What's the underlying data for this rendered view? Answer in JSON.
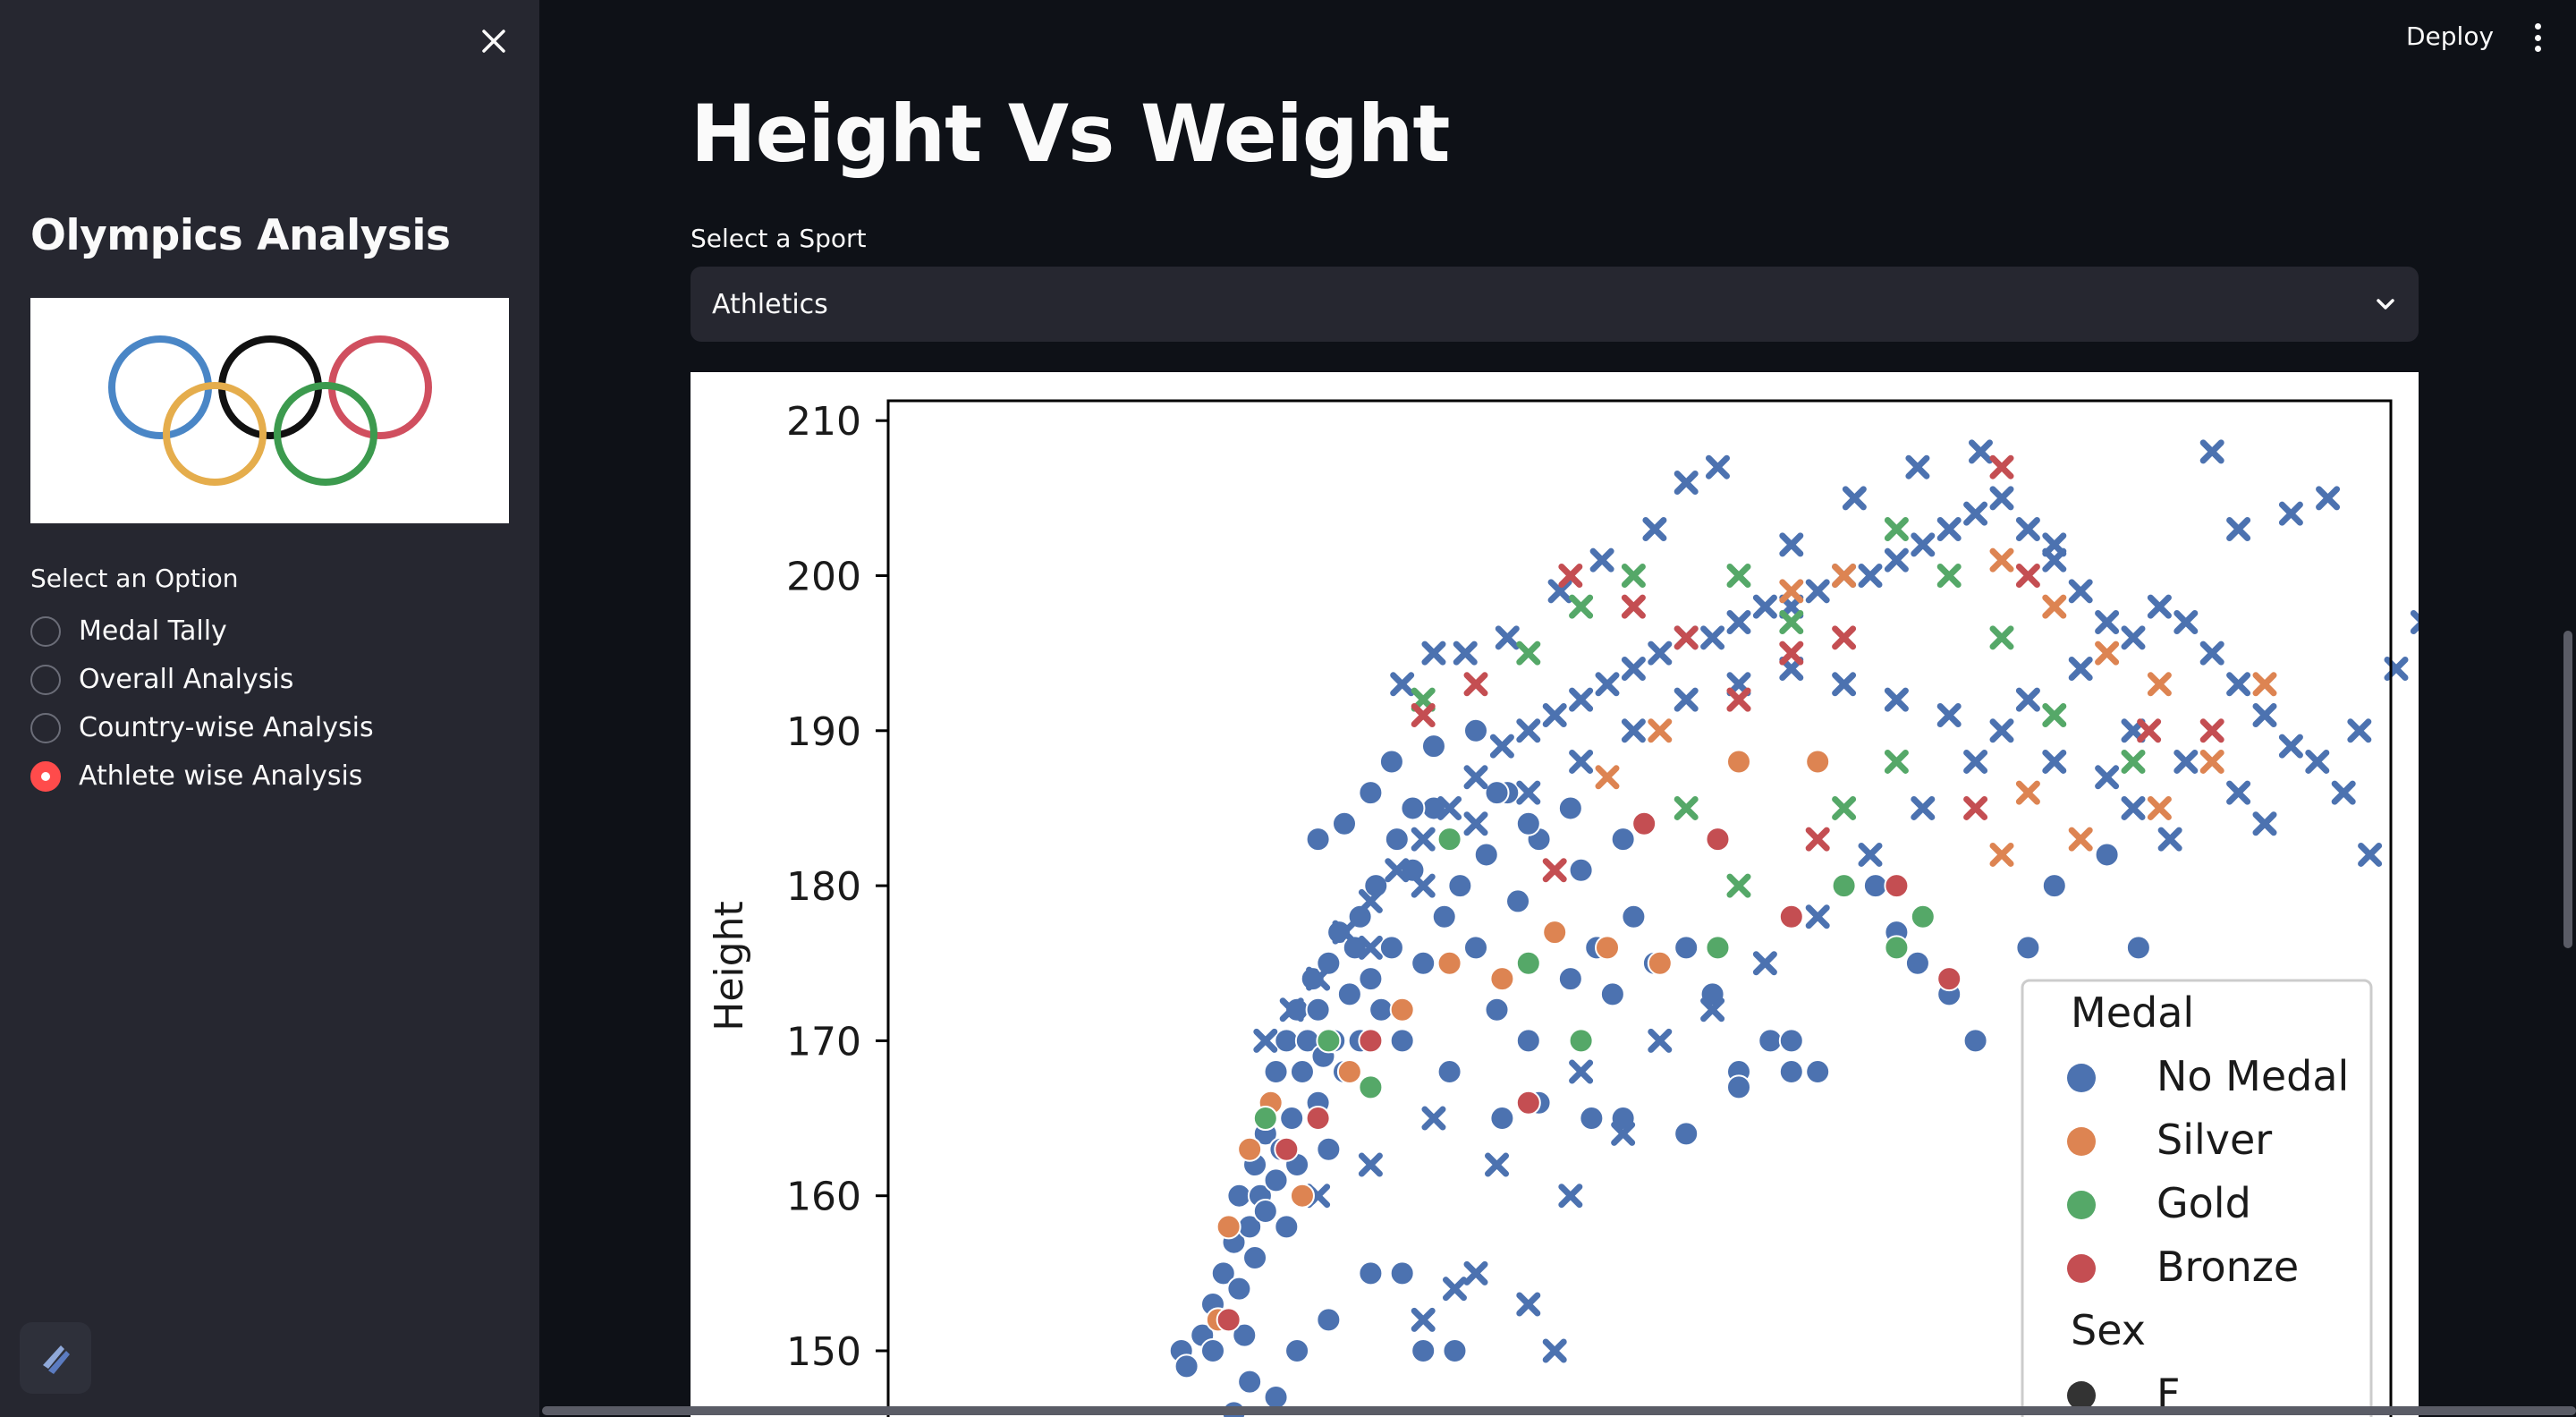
{
  "sidebar": {
    "title": "Olympics Analysis",
    "option_label": "Select an Option",
    "options": [
      {
        "label": "Medal Tally",
        "selected": false
      },
      {
        "label": "Overall Analysis",
        "selected": false
      },
      {
        "label": "Country-wise Analysis",
        "selected": false
      },
      {
        "label": "Athlete wise Analysis",
        "selected": true
      }
    ],
    "close_icon": "close-icon",
    "logo": "olympic-rings-logo"
  },
  "header": {
    "deploy_label": "Deploy",
    "menu_icon": "kebab-menu-icon"
  },
  "main": {
    "title": "Height Vs Weight",
    "select_label": "Select a Sport",
    "select_value": "Athletics"
  },
  "colors": {
    "accent": "#ff4b4b",
    "no_medal": "#4c72b0",
    "silver": "#dd8452",
    "gold": "#55a868",
    "bronze": "#c44e52"
  },
  "chart_data": {
    "type": "scatter",
    "ylabel": "Height",
    "ylim": [
      148,
      211
    ],
    "yticks": [
      150,
      160,
      170,
      180,
      190,
      200,
      210
    ],
    "legend": {
      "placement": "bottom-right",
      "hue_title": "Medal",
      "hue_entries": [
        "No Medal",
        "Silver",
        "Gold",
        "Bronze"
      ],
      "style_title": "Sex",
      "style_entries": [
        "F"
      ]
    },
    "markers": {
      "F": "circle",
      "M": "x"
    },
    "series": [
      {
        "name": "No Medal",
        "sex": "F",
        "points": [
          [
            44,
            150
          ],
          [
            45,
            149
          ],
          [
            48,
            151
          ],
          [
            50,
            153
          ],
          [
            50,
            150
          ],
          [
            52,
            155
          ],
          [
            53,
            152
          ],
          [
            54,
            157
          ],
          [
            55,
            160
          ],
          [
            55,
            154
          ],
          [
            56,
            151
          ],
          [
            57,
            158
          ],
          [
            58,
            162
          ],
          [
            58,
            156
          ],
          [
            59,
            160
          ],
          [
            60,
            164
          ],
          [
            60,
            159
          ],
          [
            61,
            166
          ],
          [
            62,
            161
          ],
          [
            62,
            168
          ],
          [
            63,
            163
          ],
          [
            64,
            170
          ],
          [
            64,
            158
          ],
          [
            65,
            165
          ],
          [
            66,
            172
          ],
          [
            66,
            162
          ],
          [
            67,
            168
          ],
          [
            68,
            170
          ],
          [
            68,
            160
          ],
          [
            69,
            174
          ],
          [
            70,
            166
          ],
          [
            70,
            172
          ],
          [
            71,
            169
          ],
          [
            72,
            175
          ],
          [
            72,
            163
          ],
          [
            73,
            170
          ],
          [
            74,
            177
          ],
          [
            75,
            168
          ],
          [
            76,
            173
          ],
          [
            77,
            176
          ],
          [
            78,
            178
          ],
          [
            78,
            170
          ],
          [
            80,
            174
          ],
          [
            81,
            180
          ],
          [
            82,
            172
          ],
          [
            84,
            176
          ],
          [
            85,
            183
          ],
          [
            86,
            170
          ],
          [
            88,
            181
          ],
          [
            90,
            175
          ],
          [
            92,
            185
          ],
          [
            94,
            178
          ],
          [
            95,
            168
          ],
          [
            97,
            180
          ],
          [
            100,
            176
          ],
          [
            102,
            182
          ],
          [
            104,
            172
          ],
          [
            106,
            186
          ],
          [
            108,
            179
          ],
          [
            110,
            170
          ],
          [
            112,
            183
          ],
          [
            115,
            177
          ],
          [
            118,
            174
          ],
          [
            120,
            181
          ],
          [
            123,
            176
          ],
          [
            126,
            173
          ],
          [
            130,
            178
          ],
          [
            134,
            175
          ],
          [
            140,
            176
          ],
          [
            145,
            173
          ],
          [
            150,
            168
          ],
          [
            156,
            170
          ],
          [
            160,
            168
          ],
          [
            165,
            168
          ],
          [
            176,
            180
          ],
          [
            180,
            177
          ],
          [
            184,
            175
          ],
          [
            190,
            173
          ],
          [
            195,
            170
          ],
          [
            205,
            176
          ],
          [
            210,
            180
          ],
          [
            220,
            182
          ],
          [
            226,
            176
          ],
          [
            70,
            183
          ],
          [
            75,
            184
          ],
          [
            80,
            186
          ],
          [
            84,
            188
          ],
          [
            88,
            185
          ],
          [
            92,
            189
          ],
          [
            100,
            190
          ],
          [
            104,
            186
          ],
          [
            110,
            184
          ],
          [
            118,
            185
          ],
          [
            128,
            183
          ],
          [
            54,
            146
          ],
          [
            57,
            148
          ],
          [
            62,
            147
          ],
          [
            66,
            150
          ],
          [
            72,
            152
          ],
          [
            80,
            155
          ],
          [
            86,
            155
          ],
          [
            90,
            150
          ],
          [
            96,
            150
          ],
          [
            105,
            165
          ],
          [
            112,
            166
          ],
          [
            122,
            165
          ],
          [
            128,
            165
          ],
          [
            140,
            164
          ],
          [
            150,
            167
          ],
          [
            160,
            170
          ]
        ]
      },
      {
        "name": "No Medal",
        "sex": "M",
        "points": [
          [
            60,
            170
          ],
          [
            65,
            172
          ],
          [
            70,
            174
          ],
          [
            75,
            177
          ],
          [
            80,
            179
          ],
          [
            85,
            181
          ],
          [
            90,
            183
          ],
          [
            95,
            185
          ],
          [
            100,
            187
          ],
          [
            105,
            189
          ],
          [
            110,
            190
          ],
          [
            115,
            191
          ],
          [
            120,
            192
          ],
          [
            125,
            193
          ],
          [
            130,
            194
          ],
          [
            135,
            195
          ],
          [
            140,
            196
          ],
          [
            145,
            196
          ],
          [
            150,
            197
          ],
          [
            155,
            198
          ],
          [
            160,
            198
          ],
          [
            165,
            199
          ],
          [
            170,
            200
          ],
          [
            175,
            200
          ],
          [
            180,
            201
          ],
          [
            185,
            202
          ],
          [
            190,
            203
          ],
          [
            195,
            204
          ],
          [
            200,
            205
          ],
          [
            205,
            203
          ],
          [
            210,
            201
          ],
          [
            215,
            199
          ],
          [
            220,
            197
          ],
          [
            225,
            196
          ],
          [
            230,
            198
          ],
          [
            235,
            197
          ],
          [
            240,
            195
          ],
          [
            245,
            193
          ],
          [
            250,
            191
          ],
          [
            255,
            189
          ],
          [
            260,
            188
          ],
          [
            268,
            190
          ],
          [
            275,
            194
          ],
          [
            280,
            197
          ],
          [
            290,
            203
          ],
          [
            295,
            208
          ],
          [
            300,
            202
          ],
          [
            240,
            208
          ],
          [
            245,
            203
          ],
          [
            255,
            204
          ],
          [
            262,
            205
          ],
          [
            265,
            186
          ],
          [
            270,
            182
          ],
          [
            250,
            184
          ],
          [
            232,
            183
          ],
          [
            225,
            185
          ],
          [
            220,
            187
          ],
          [
            210,
            188
          ],
          [
            200,
            190
          ],
          [
            190,
            191
          ],
          [
            180,
            192
          ],
          [
            170,
            193
          ],
          [
            160,
            194
          ],
          [
            150,
            193
          ],
          [
            140,
            192
          ],
          [
            130,
            190
          ],
          [
            120,
            188
          ],
          [
            110,
            186
          ],
          [
            100,
            184
          ],
          [
            90,
            180
          ],
          [
            80,
            176
          ],
          [
            86,
            193
          ],
          [
            92,
            195
          ],
          [
            98,
            195
          ],
          [
            106,
            196
          ],
          [
            116,
            199
          ],
          [
            124,
            201
          ],
          [
            134,
            203
          ],
          [
            140,
            206
          ],
          [
            146,
            207
          ],
          [
            160,
            202
          ],
          [
            172,
            205
          ],
          [
            184,
            207
          ],
          [
            196,
            208
          ],
          [
            210,
            202
          ],
          [
            70,
            160
          ],
          [
            80,
            162
          ],
          [
            92,
            165
          ],
          [
            104,
            162
          ],
          [
            118,
            160
          ],
          [
            128,
            164
          ],
          [
            90,
            152
          ],
          [
            96,
            154
          ],
          [
            100,
            155
          ],
          [
            110,
            153
          ],
          [
            115,
            150
          ],
          [
            120,
            168
          ],
          [
            135,
            170
          ],
          [
            145,
            172
          ],
          [
            155,
            175
          ],
          [
            165,
            178
          ],
          [
            175,
            182
          ],
          [
            185,
            185
          ],
          [
            195,
            188
          ],
          [
            205,
            192
          ],
          [
            215,
            194
          ],
          [
            225,
            190
          ],
          [
            235,
            188
          ],
          [
            245,
            186
          ]
        ]
      },
      {
        "name": "Silver",
        "sex": "F",
        "points": [
          [
            51,
            152
          ],
          [
            53,
            158
          ],
          [
            57,
            163
          ],
          [
            61,
            166
          ],
          [
            67,
            160
          ],
          [
            76,
            168
          ],
          [
            86,
            172
          ],
          [
            95,
            175
          ],
          [
            105,
            174
          ],
          [
            115,
            177
          ],
          [
            125,
            176
          ],
          [
            135,
            175
          ],
          [
            150,
            188
          ],
          [
            165,
            188
          ]
        ]
      },
      {
        "name": "Silver",
        "sex": "M",
        "points": [
          [
            125,
            187
          ],
          [
            135,
            190
          ],
          [
            150,
            192
          ],
          [
            160,
            199
          ],
          [
            170,
            200
          ],
          [
            200,
            201
          ],
          [
            210,
            198
          ],
          [
            220,
            195
          ],
          [
            230,
            193
          ],
          [
            250,
            193
          ],
          [
            240,
            188
          ],
          [
            230,
            185
          ],
          [
            205,
            186
          ],
          [
            215,
            183
          ],
          [
            200,
            182
          ]
        ]
      },
      {
        "name": "Gold",
        "sex": "F",
        "points": [
          [
            60,
            165
          ],
          [
            72,
            170
          ],
          [
            80,
            167
          ],
          [
            95,
            183
          ],
          [
            120,
            170
          ],
          [
            146,
            176
          ],
          [
            170,
            180
          ],
          [
            180,
            176
          ],
          [
            185,
            178
          ],
          [
            110,
            175
          ]
        ]
      },
      {
        "name": "Gold",
        "sex": "M",
        "points": [
          [
            90,
            192
          ],
          [
            110,
            195
          ],
          [
            120,
            198
          ],
          [
            130,
            200
          ],
          [
            150,
            200
          ],
          [
            160,
            197
          ],
          [
            180,
            203
          ],
          [
            190,
            200
          ],
          [
            200,
            196
          ],
          [
            210,
            191
          ],
          [
            225,
            188
          ],
          [
            140,
            185
          ],
          [
            150,
            180
          ],
          [
            170,
            185
          ],
          [
            180,
            188
          ]
        ]
      },
      {
        "name": "Bronze",
        "sex": "F",
        "points": [
          [
            53,
            152
          ],
          [
            64,
            163
          ],
          [
            70,
            165
          ],
          [
            80,
            170
          ],
          [
            110,
            166
          ],
          [
            132,
            184
          ],
          [
            146,
            183
          ],
          [
            160,
            178
          ],
          [
            180,
            180
          ],
          [
            190,
            174
          ]
        ]
      },
      {
        "name": "Bronze",
        "sex": "M",
        "points": [
          [
            100,
            193
          ],
          [
            118,
            200
          ],
          [
            130,
            198
          ],
          [
            140,
            196
          ],
          [
            150,
            192
          ],
          [
            160,
            195
          ],
          [
            170,
            196
          ],
          [
            200,
            207
          ],
          [
            205,
            200
          ],
          [
            195,
            185
          ],
          [
            240,
            190
          ],
          [
            228,
            190
          ],
          [
            165,
            183
          ],
          [
            115,
            181
          ],
          [
            90,
            191
          ]
        ]
      }
    ]
  }
}
